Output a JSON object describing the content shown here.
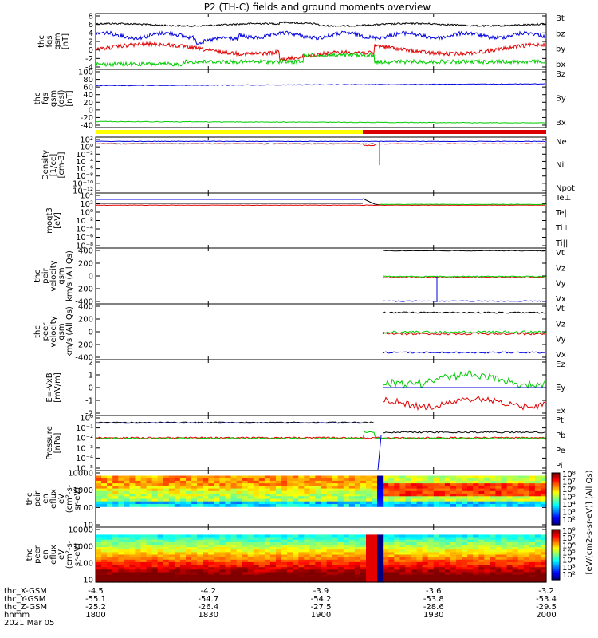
{
  "title": "P2 (TH-C) fields and ground moments overview",
  "colors": {
    "black": "#000000",
    "red": "#e00000",
    "green": "#00cc00",
    "blue": "#0000dd",
    "yellow": "#ffff00",
    "barred": "#dd0000"
  },
  "chart_data": [
    {
      "type": "line",
      "ylabel_lines": [
        "thc",
        "fgs",
        "gsm",
        "[nT]"
      ],
      "yticks": [
        "8",
        "6",
        "4",
        "2",
        "0",
        "-2",
        "-4"
      ],
      "legend": [
        {
          "text": "Bt",
          "color": "#000000"
        },
        {
          "text": "bz",
          "color": "#e00000"
        },
        {
          "text": "by",
          "color": "#00cc00"
        },
        {
          "text": "bx",
          "color": "#0000dd"
        }
      ]
    },
    {
      "type": "line",
      "ylabel_lines": [
        "thc",
        "fgs",
        "gsm",
        "(dsl)",
        "[nT]"
      ],
      "yticks": [
        "100",
        "80",
        "60",
        "40",
        "20",
        "0",
        "-20",
        "-40"
      ],
      "legend": [
        {
          "text": "Bz",
          "color": "#e00000"
        },
        {
          "text": "By",
          "color": "#00cc00"
        },
        {
          "text": "Bx",
          "color": "#0000dd"
        }
      ]
    },
    {
      "type": "line",
      "ylabel_lines": [
        "Density",
        "[1/cc]",
        "[cm-3]"
      ],
      "yticks": [
        "10²",
        "10⁰",
        "10⁻²",
        "10⁻⁴",
        "10⁻⁶",
        "10⁻⁸",
        "10⁻¹⁰",
        "10⁻¹²"
      ],
      "legend": [
        {
          "text": "Ne",
          "color": "#e00000"
        },
        {
          "text": "Ni",
          "color": "#000000"
        },
        {
          "text": "Npot",
          "color": "#0000dd"
        }
      ]
    },
    {
      "type": "line",
      "ylabel_lines": [
        "moqt3",
        "[eV]"
      ],
      "yticks": [
        "10⁴",
        "10²",
        "10⁰",
        "10⁻²",
        "10⁻⁴",
        "10⁻⁶",
        "10⁻⁸"
      ],
      "legend": [
        {
          "text": "Te⊥",
          "color": "#e00000"
        },
        {
          "text": "Te||",
          "color": "#000000"
        },
        {
          "text": "Ti⊥",
          "color": "#0000dd"
        },
        {
          "text": "Ti||",
          "color": "#00cc00"
        }
      ]
    },
    {
      "type": "line",
      "ylabel_lines": [
        "thc",
        "peir",
        "velocity",
        "gsm",
        "km/s (All Qs)"
      ],
      "yticks": [
        "400",
        "200",
        "0",
        "-200",
        "-400"
      ],
      "legend": [
        {
          "text": "Vt",
          "color": "#000000"
        },
        {
          "text": "Vz",
          "color": "#e00000"
        },
        {
          "text": "Vy",
          "color": "#00cc00"
        },
        {
          "text": "Vx",
          "color": "#0000dd"
        }
      ]
    },
    {
      "type": "line",
      "ylabel_lines": [
        "thc",
        "peer",
        "velocity",
        "gsm",
        "km/s (All Qs)"
      ],
      "yticks": [
        "400",
        "200",
        "0",
        "-200",
        "-400"
      ],
      "legend": [
        {
          "text": "Vt",
          "color": "#000000"
        },
        {
          "text": "Vz",
          "color": "#e00000"
        },
        {
          "text": "Vy",
          "color": "#00cc00"
        },
        {
          "text": "Vx",
          "color": "#0000dd"
        }
      ]
    },
    {
      "type": "line",
      "ylabel_lines": [
        "E=-VxB",
        "[mV/m]"
      ],
      "yticks": [
        "2",
        "1",
        "0",
        "-1",
        "-2"
      ],
      "legend": [
        {
          "text": "Ez",
          "color": "#e00000"
        },
        {
          "text": "Ey",
          "color": "#00cc00"
        },
        {
          "text": "Ex",
          "color": "#0000dd"
        }
      ]
    },
    {
      "type": "line",
      "ylabel_lines": [
        "Pressure",
        "[nPa]"
      ],
      "yticks": [
        "10⁰",
        "10⁻¹",
        "10⁻²",
        "10⁻³",
        "10⁻⁴",
        "10⁻⁵"
      ],
      "legend": [
        {
          "text": "Pt",
          "color": "#000000"
        },
        {
          "text": "Pb",
          "color": "#e00000"
        },
        {
          "text": "Pe",
          "color": "#00cc00"
        },
        {
          "text": "Pi",
          "color": "#0000dd"
        }
      ]
    },
    {
      "type": "heatmap",
      "ylabel_lines": [
        "thc",
        "peir",
        "en",
        "eflux",
        "eV",
        "(cm²-s-",
        "sr-eV)"
      ],
      "yticks": [
        "10000",
        "1000",
        "100",
        "10"
      ],
      "colorbar_ticks": [
        "10⁸",
        "10⁷",
        "10⁶",
        "10⁵",
        "10⁴",
        "10³",
        "10²"
      ],
      "colorbar_label": "[eV/(cm2-s-sr-eV)] (All Qs)"
    },
    {
      "type": "heatmap",
      "ylabel_lines": [
        "thc",
        "peer",
        "en",
        "eflux",
        "eV",
        "(cm²-s-",
        "sr-eV)"
      ],
      "yticks": [
        "10000",
        "1000",
        "100",
        "10"
      ],
      "colorbar_ticks": [
        "10⁸",
        "10⁷",
        "10⁶",
        "10⁵",
        "10⁴",
        "10³",
        "10²"
      ],
      "colorbar_label": "[eV/(cm2-s-sr-eV)] (All Qs)"
    }
  ],
  "xaxis": {
    "row_labels": [
      "thc_X-GSM",
      "thc_Y-GSM",
      "thc_Z-GSM",
      "hhmm",
      "2021 Mar 05"
    ],
    "columns": [
      [
        "-4.5",
        "-55.1",
        "-25.2",
        "1800"
      ],
      [
        "-4.2",
        "-54.7",
        "-26.4",
        "1830"
      ],
      [
        "-3.9",
        "-54.2",
        "-27.5",
        "1900"
      ],
      [
        "-3.6",
        "-53.8",
        "-28.6",
        "1930"
      ],
      [
        "-3.2",
        "-53.4",
        "-29.5",
        "2000"
      ]
    ]
  }
}
